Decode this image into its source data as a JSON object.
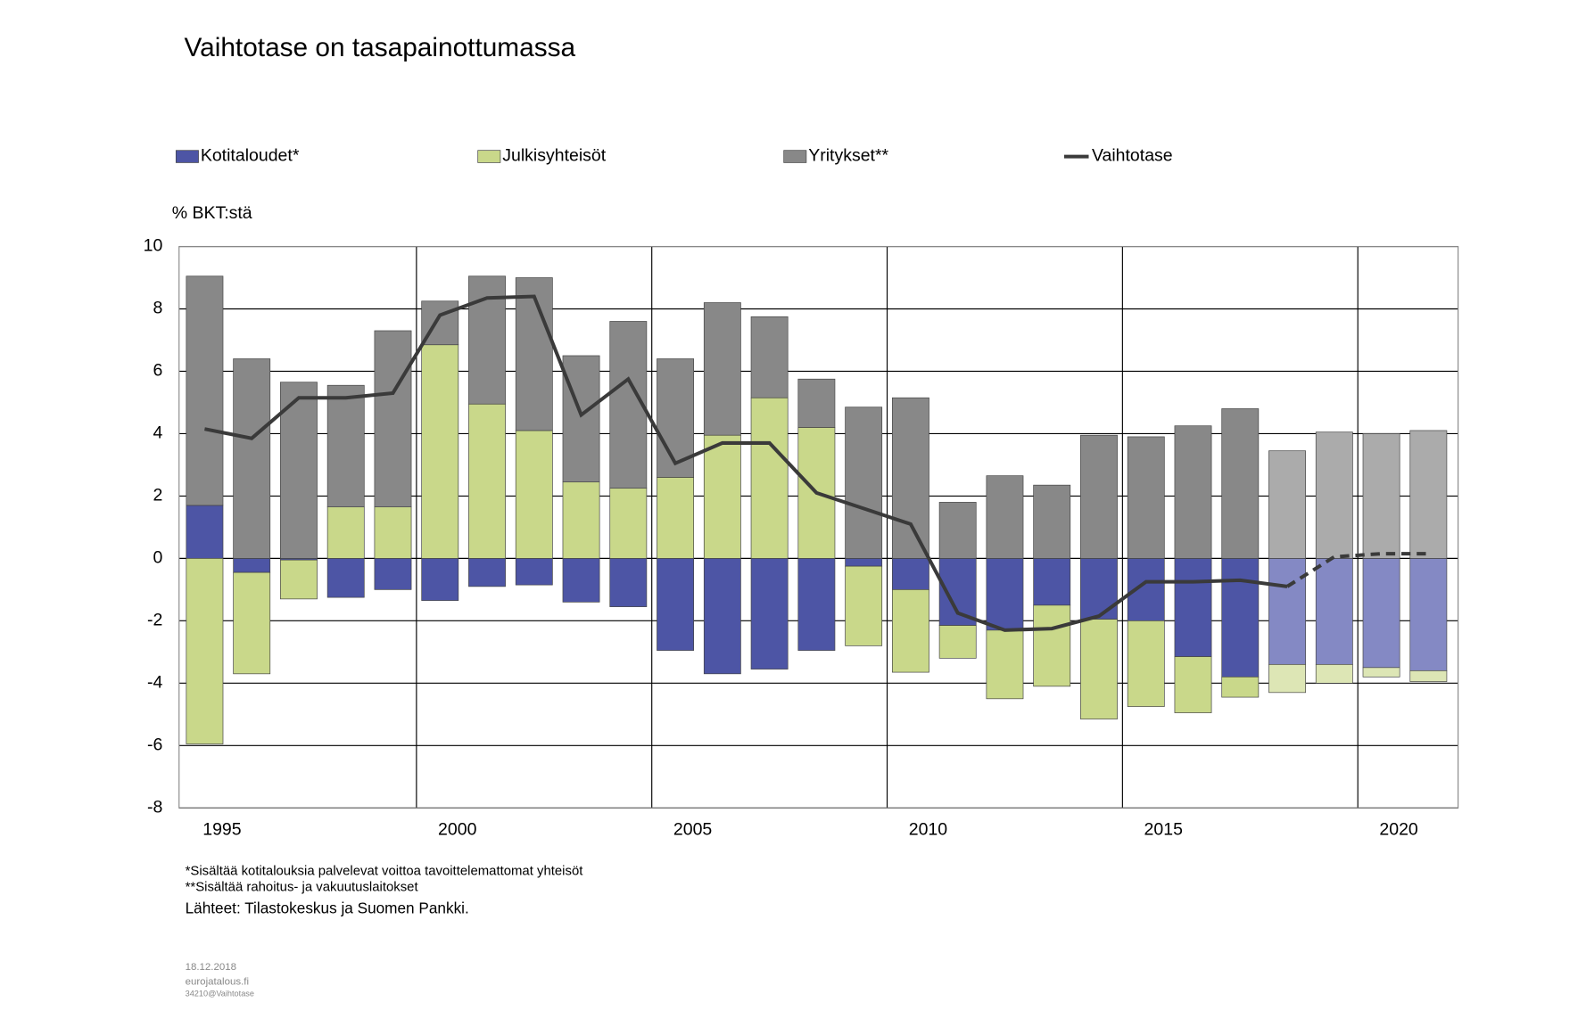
{
  "chart_data": {
    "type": "stacked_bar_line",
    "title": "Vaihtotase on tasapainottumassa",
    "y_label": "% BKT:stä",
    "categories": [
      "1995",
      null,
      null,
      null,
      null,
      "2000",
      null,
      null,
      null,
      null,
      "2005",
      null,
      null,
      null,
      null,
      "2010",
      null,
      null,
      null,
      null,
      "2015",
      null,
      null,
      null,
      null,
      "2020",
      null
    ],
    "ylim": [
      -8,
      10
    ],
    "yticks": [
      -8,
      -6,
      -4,
      -2,
      0,
      2,
      4,
      6,
      8,
      10
    ],
    "grid": true,
    "legend": "top",
    "series": [
      {
        "name": "Kotitaloudet*",
        "kind": "bar",
        "color": "#4d55a5",
        "colors": [
          "#4d55a5",
          "#4d55a5",
          "#4d55a5",
          "#4d55a5",
          "#4d55a5",
          "#4d55a5",
          "#4d55a5",
          "#4d55a5",
          "#4d55a5",
          "#4d55a5",
          "#4d55a5",
          "#4d55a5",
          "#4d55a5",
          "#4d55a5",
          "#4d55a5",
          "#4d55a5",
          "#4d55a5",
          "#4d55a5",
          "#4d55a5",
          "#4d55a5",
          "#4d55a5",
          "#4d55a5",
          "#4d55a5",
          "#8489c4",
          "#8489c4",
          "#8489c4",
          "#8489c4"
        ],
        "values": [
          1.7,
          -0.45,
          -0.05,
          -1.25,
          -1.0,
          -1.35,
          -0.9,
          -0.85,
          -1.4,
          -1.55,
          -2.95,
          -3.7,
          -3.55,
          -2.95,
          -0.25,
          -1.0,
          -2.15,
          -2.3,
          -1.5,
          -1.95,
          -2.0,
          -3.15,
          -3.8,
          -3.4,
          -3.4,
          -3.5,
          -3.6
        ]
      },
      {
        "name": "Julkisyhteisöt",
        "kind": "bar",
        "color": "#c9d88a",
        "colors": [
          "#c9d88a",
          "#c9d88a",
          "#c9d88a",
          "#c9d88a",
          "#c9d88a",
          "#c9d88a",
          "#c9d88a",
          "#c9d88a",
          "#c9d88a",
          "#c9d88a",
          "#c9d88a",
          "#c9d88a",
          "#c9d88a",
          "#c9d88a",
          "#c9d88a",
          "#c9d88a",
          "#c9d88a",
          "#c9d88a",
          "#c9d88a",
          "#c9d88a",
          "#c9d88a",
          "#c9d88a",
          "#c9d88a",
          "#dde6b5",
          "#dde6b5",
          "#dde6b5",
          "#dde6b5"
        ],
        "values": [
          -5.95,
          -3.25,
          -1.25,
          1.65,
          1.65,
          6.85,
          4.95,
          4.1,
          2.45,
          2.25,
          2.6,
          3.95,
          5.15,
          4.2,
          -2.55,
          -2.65,
          -1.05,
          -2.2,
          -2.6,
          -3.2,
          -2.75,
          -1.8,
          -0.65,
          -0.9,
          -0.6,
          -0.3,
          -0.35
        ]
      },
      {
        "name": "Yritykset**",
        "kind": "bar",
        "color": "#888888",
        "colors": [
          "#888888",
          "#888888",
          "#888888",
          "#888888",
          "#888888",
          "#888888",
          "#888888",
          "#888888",
          "#888888",
          "#888888",
          "#888888",
          "#888888",
          "#888888",
          "#888888",
          "#888888",
          "#888888",
          "#888888",
          "#888888",
          "#888888",
          "#888888",
          "#888888",
          "#888888",
          "#888888",
          "#ababab",
          "#ababab",
          "#ababab",
          "#ababab"
        ],
        "values": [
          7.35,
          6.4,
          5.65,
          3.9,
          5.65,
          1.4,
          4.1,
          4.9,
          4.05,
          5.35,
          3.8,
          4.25,
          2.6,
          1.55,
          4.85,
          5.15,
          1.8,
          2.65,
          2.35,
          3.95,
          3.9,
          4.25,
          4.8,
          3.45,
          4.05,
          4.0,
          4.1
        ]
      },
      {
        "name": "Vaihtotase",
        "kind": "line",
        "color": "#3a3a3a",
        "dashed": [
          false,
          false,
          false,
          false,
          false,
          false,
          false,
          false,
          false,
          false,
          false,
          false,
          false,
          false,
          false,
          false,
          false,
          false,
          false,
          false,
          false,
          false,
          false,
          false,
          true,
          true,
          true
        ],
        "values": [
          4.15,
          3.85,
          5.15,
          5.15,
          5.3,
          7.8,
          8.35,
          8.4,
          4.6,
          5.75,
          3.05,
          3.7,
          3.7,
          2.1,
          1.6,
          1.1,
          -1.75,
          -2.3,
          -2.25,
          -1.85,
          -0.75,
          -0.75,
          -0.7,
          -0.9,
          0.05,
          0.15,
          0.15
        ]
      }
    ],
    "notes": [
      "*Sisältää kotitalouksia palvelevat voittoa tavoittelemattomat yhteisöt",
      "**Sisältää rahoitus- ja vakuutuslaitokset"
    ],
    "source": "Lähteet: Tilastokeskus ja Suomen Pankki.",
    "footer": [
      "18.12.2018",
      "eurojatalous.fi",
      "34210@Vaihtotase"
    ]
  }
}
